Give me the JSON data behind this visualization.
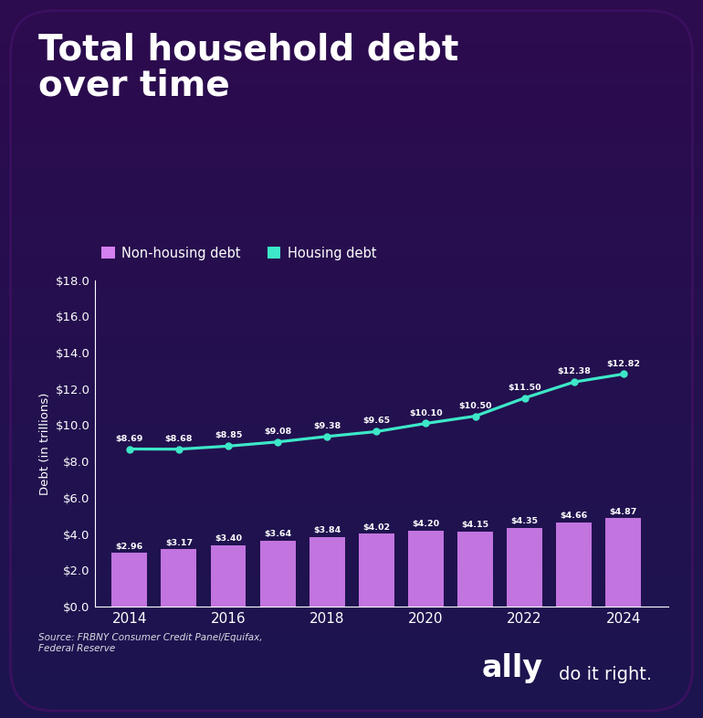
{
  "title": "Total household debt\nover time",
  "years": [
    2014,
    2015,
    2016,
    2017,
    2018,
    2019,
    2020,
    2021,
    2022,
    2023,
    2024
  ],
  "non_housing": [
    2.96,
    3.17,
    3.4,
    3.64,
    3.84,
    4.02,
    4.2,
    4.15,
    4.35,
    4.66,
    4.87
  ],
  "housing": [
    8.69,
    8.68,
    8.85,
    9.08,
    9.38,
    9.65,
    10.1,
    10.5,
    11.5,
    12.38,
    12.82
  ],
  "bar_color": "#d580f0",
  "line_color": "#3de8c8",
  "bg_top": "#2d0b4e",
  "bg_bottom": "#1c1550",
  "text_color": "#ffffff",
  "ylabel": "Debt (in trillions)",
  "ylim": [
    0,
    18
  ],
  "yticks": [
    0,
    2,
    4,
    6,
    8,
    10,
    12,
    14,
    16,
    18
  ],
  "legend_nonhousing": "Non-housing debt",
  "legend_housing": "Housing debt",
  "source_text": "Source: FRBNY Consumer Credit Panel/Equifax,\nFederal Reserve",
  "xtick_years": [
    2014,
    2016,
    2018,
    2020,
    2022,
    2024
  ]
}
